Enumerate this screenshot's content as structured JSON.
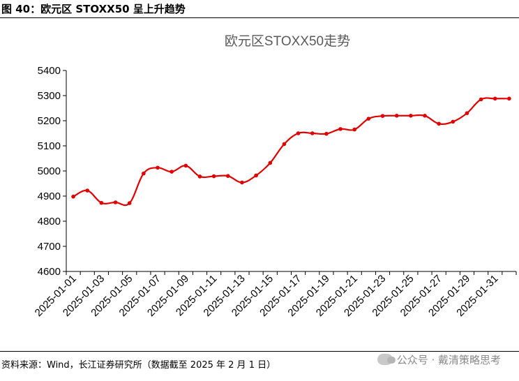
{
  "figure": {
    "caption": "图 40：欧元区 STOXX50 呈上升趋势",
    "source": "资料来源：Wind，长江证券研究所（数据截至 2025 年 2 月 1 日）"
  },
  "watermark": {
    "text": "公众号 · 戴清策略思考"
  },
  "colors": {
    "series": "#e00000",
    "axis": "#000000"
  },
  "chart_data": {
    "type": "line",
    "title": "欧元区STOXX50走势",
    "xlabel": "",
    "ylabel": "",
    "ylim": [
      4600,
      5400
    ],
    "yticks": [
      4600,
      4700,
      4800,
      4900,
      5000,
      5100,
      5200,
      5300,
      5400
    ],
    "xtick_labels": [
      "2025-01-01",
      "2025-01-03",
      "2025-01-05",
      "2025-01-07",
      "2025-01-09",
      "2025-01-11",
      "2025-01-13",
      "2025-01-15",
      "2025-01-17",
      "2025-01-19",
      "2025-01-21",
      "2025-01-23",
      "2025-01-25",
      "2025-01-27",
      "2025-01-29",
      "2025-01-31"
    ],
    "x": [
      "2025-01-01",
      "2025-01-02",
      "2025-01-03",
      "2025-01-04",
      "2025-01-05",
      "2025-01-06",
      "2025-01-07",
      "2025-01-08",
      "2025-01-09",
      "2025-01-10",
      "2025-01-11",
      "2025-01-12",
      "2025-01-13",
      "2025-01-14",
      "2025-01-15",
      "2025-01-16",
      "2025-01-17",
      "2025-01-18",
      "2025-01-19",
      "2025-01-20",
      "2025-01-21",
      "2025-01-22",
      "2025-01-23",
      "2025-01-24",
      "2025-01-25",
      "2025-01-26",
      "2025-01-27",
      "2025-01-28",
      "2025-01-29",
      "2025-01-30",
      "2025-01-31",
      "2025-02-01"
    ],
    "series": [
      {
        "name": "STOXX50",
        "values": [
          4898,
          4922,
          4873,
          4875,
          4872,
          4990,
          5013,
          4997,
          5021,
          4978,
          4979,
          4980,
          4954,
          4982,
          5032,
          5107,
          5150,
          5150,
          5148,
          5167,
          5165,
          5208,
          5219,
          5220,
          5220,
          5220,
          5188,
          5196,
          5230,
          5285,
          5288,
          5288
        ]
      }
    ],
    "grid": false,
    "legend": "none"
  }
}
